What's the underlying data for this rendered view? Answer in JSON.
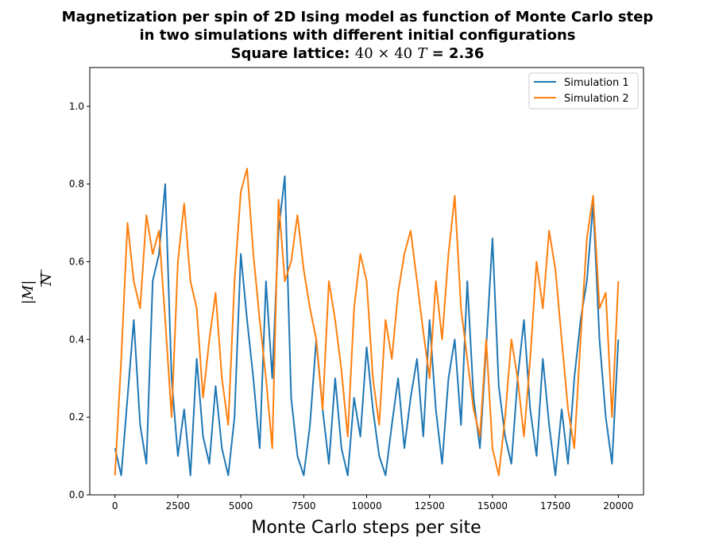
{
  "chart_data": {
    "type": "line",
    "title": {
      "line1": "Magnetization per spin of 2D Ising model as function of Monte Carlo step",
      "line2": "in two simulations with different initial configurations",
      "line3_prefix": "Square lattice: ",
      "lattice": "40 × 40",
      "temp_symbol": "T",
      "temp_value": " = 2.36"
    },
    "xlabel": "Monte Carlo steps per site",
    "ylabel_numerator": "|M|",
    "ylabel_denominator": "N",
    "xlim": [
      -1000,
      21000
    ],
    "ylim": [
      0,
      1.1
    ],
    "xticks": [
      0,
      2500,
      5000,
      7500,
      10000,
      12500,
      15000,
      17500,
      20000
    ],
    "yticks": [
      0.0,
      0.2,
      0.4,
      0.6,
      0.8,
      1.0
    ],
    "legend_position": "upper right",
    "grid": false,
    "series": [
      {
        "name": "Simulation 1",
        "color": "#1f77b4",
        "x": [
          0,
          250,
          500,
          750,
          1000,
          1250,
          1500,
          1750,
          2000,
          2250,
          2500,
          2750,
          3000,
          3250,
          3500,
          3750,
          4000,
          4250,
          4500,
          4750,
          5000,
          5250,
          5500,
          5750,
          6000,
          6250,
          6500,
          6750,
          7000,
          7250,
          7500,
          7750,
          8000,
          8250,
          8500,
          8750,
          9000,
          9250,
          9500,
          9750,
          10000,
          10250,
          10500,
          10750,
          11000,
          11250,
          11500,
          11750,
          12000,
          12250,
          12500,
          12750,
          13000,
          13250,
          13500,
          13750,
          14000,
          14250,
          14500,
          14750,
          15000,
          15250,
          15500,
          15750,
          16000,
          16250,
          16500,
          16750,
          17000,
          17250,
          17500,
          17750,
          18000,
          18250,
          18500,
          18750,
          19000,
          19250,
          19500,
          19750,
          20000
        ],
        "y": [
          0.12,
          0.05,
          0.25,
          0.45,
          0.18,
          0.08,
          0.55,
          0.62,
          0.8,
          0.3,
          0.1,
          0.22,
          0.05,
          0.35,
          0.15,
          0.08,
          0.28,
          0.12,
          0.05,
          0.2,
          0.62,
          0.45,
          0.3,
          0.12,
          0.55,
          0.3,
          0.68,
          0.82,
          0.25,
          0.1,
          0.05,
          0.18,
          0.4,
          0.22,
          0.08,
          0.3,
          0.12,
          0.05,
          0.25,
          0.15,
          0.38,
          0.22,
          0.1,
          0.05,
          0.18,
          0.3,
          0.12,
          0.25,
          0.35,
          0.15,
          0.45,
          0.22,
          0.08,
          0.3,
          0.4,
          0.18,
          0.55,
          0.25,
          0.12,
          0.38,
          0.66,
          0.28,
          0.15,
          0.08,
          0.3,
          0.45,
          0.22,
          0.1,
          0.35,
          0.18,
          0.05,
          0.22,
          0.08,
          0.3,
          0.45,
          0.55,
          0.75,
          0.4,
          0.2,
          0.08,
          0.4
        ]
      },
      {
        "name": "Simulation 2",
        "color": "#ff7f0e",
        "x": [
          0,
          250,
          500,
          750,
          1000,
          1250,
          1500,
          1750,
          2000,
          2250,
          2500,
          2750,
          3000,
          3250,
          3500,
          3750,
          4000,
          4250,
          4500,
          4750,
          5000,
          5250,
          5500,
          5750,
          6000,
          6250,
          6500,
          6750,
          7000,
          7250,
          7500,
          7750,
          8000,
          8250,
          8500,
          8750,
          9000,
          9250,
          9500,
          9750,
          10000,
          10250,
          10500,
          10750,
          11000,
          11250,
          11500,
          11750,
          12000,
          12250,
          12500,
          12750,
          13000,
          13250,
          13500,
          13750,
          14000,
          14250,
          14500,
          14750,
          15000,
          15250,
          15500,
          15750,
          16000,
          16250,
          16500,
          16750,
          17000,
          17250,
          17500,
          17750,
          18000,
          18250,
          18500,
          18750,
          19000,
          19250,
          19500,
          19750,
          20000
        ],
        "y": [
          0.05,
          0.35,
          0.7,
          0.55,
          0.48,
          0.72,
          0.62,
          0.68,
          0.45,
          0.2,
          0.6,
          0.75,
          0.55,
          0.48,
          0.25,
          0.4,
          0.52,
          0.3,
          0.18,
          0.55,
          0.78,
          0.84,
          0.62,
          0.45,
          0.3,
          0.12,
          0.76,
          0.55,
          0.6,
          0.72,
          0.58,
          0.48,
          0.4,
          0.22,
          0.55,
          0.45,
          0.32,
          0.15,
          0.48,
          0.62,
          0.55,
          0.3,
          0.18,
          0.45,
          0.35,
          0.52,
          0.62,
          0.68,
          0.55,
          0.42,
          0.3,
          0.55,
          0.4,
          0.62,
          0.77,
          0.48,
          0.35,
          0.22,
          0.15,
          0.4,
          0.12,
          0.05,
          0.2,
          0.4,
          0.3,
          0.15,
          0.35,
          0.6,
          0.48,
          0.68,
          0.58,
          0.4,
          0.22,
          0.12,
          0.4,
          0.66,
          0.77,
          0.48,
          0.52,
          0.2,
          0.55
        ]
      }
    ]
  }
}
